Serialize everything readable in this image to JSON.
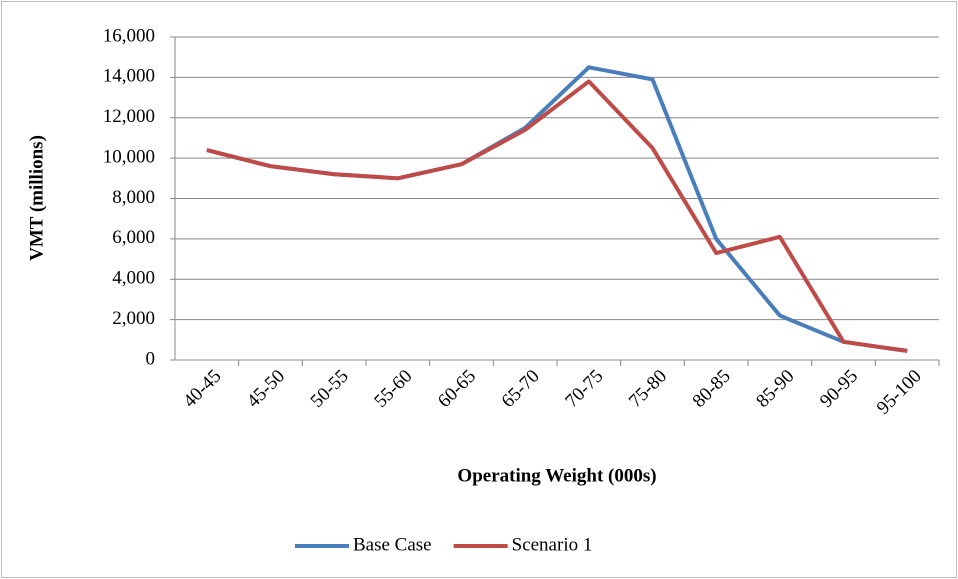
{
  "chart_data": {
    "type": "line",
    "categories": [
      "40-45",
      "45-50",
      "50-55",
      "55-60",
      "60-65",
      "65-70",
      "70-75",
      "75-80",
      "80-85",
      "85-90",
      "90-95",
      "95-100"
    ],
    "series": [
      {
        "name": "Base Case",
        "color": "#4a7ebb",
        "values": [
          10400,
          9600,
          9200,
          9000,
          9700,
          11500,
          14500,
          13900,
          6000,
          2200,
          900,
          450
        ]
      },
      {
        "name": "Scenario 1",
        "color": "#be4b48",
        "values": [
          10400,
          9600,
          9200,
          9000,
          9700,
          11400,
          13800,
          10500,
          5300,
          6100,
          900,
          450
        ]
      }
    ],
    "ylim": [
      0,
      16000
    ],
    "yticks": [
      0,
      {
        "value": 2000,
        "label": "2,000"
      },
      {
        "value": 4000,
        "label": "4,000"
      },
      {
        "value": 6000,
        "label": "6,000"
      },
      {
        "value": 8000,
        "label": "8,000"
      },
      {
        "value": 10000,
        "label": "10,000"
      },
      {
        "value": 12000,
        "label": "12,000"
      },
      {
        "value": 14000,
        "label": "14,000"
      },
      {
        "value": 16000,
        "label": "16,000"
      }
    ],
    "xlabel": "Operating Weight (000s)",
    "ylabel": "VMT (millions)",
    "grid": true,
    "legend": "bottom"
  }
}
